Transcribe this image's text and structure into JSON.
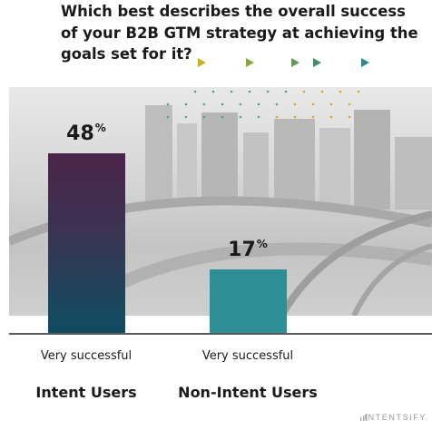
{
  "chart_data": {
    "type": "bar",
    "title": "Which best describes the overall success of your B2B GTM strategy at achieving the goals set for it?",
    "categories": [
      {
        "response": "Very successful",
        "group": "Intent Users"
      },
      {
        "response": "Very successful",
        "group": "Non-Intent Users"
      }
    ],
    "values": [
      48,
      17
    ],
    "value_suffix": "%",
    "ylim": [
      0,
      60
    ],
    "grid": false,
    "colors": [
      "#4b2449",
      "#2e9096"
    ]
  },
  "brand": {
    "name": "INTENTSIFY",
    "icon": "bars-logo-icon"
  },
  "decor": {
    "arrow_colors": [
      "#c9b21c",
      "#8aa83a",
      "#5e9a52",
      "#3f8f6b",
      "#2b8a8a"
    ]
  }
}
